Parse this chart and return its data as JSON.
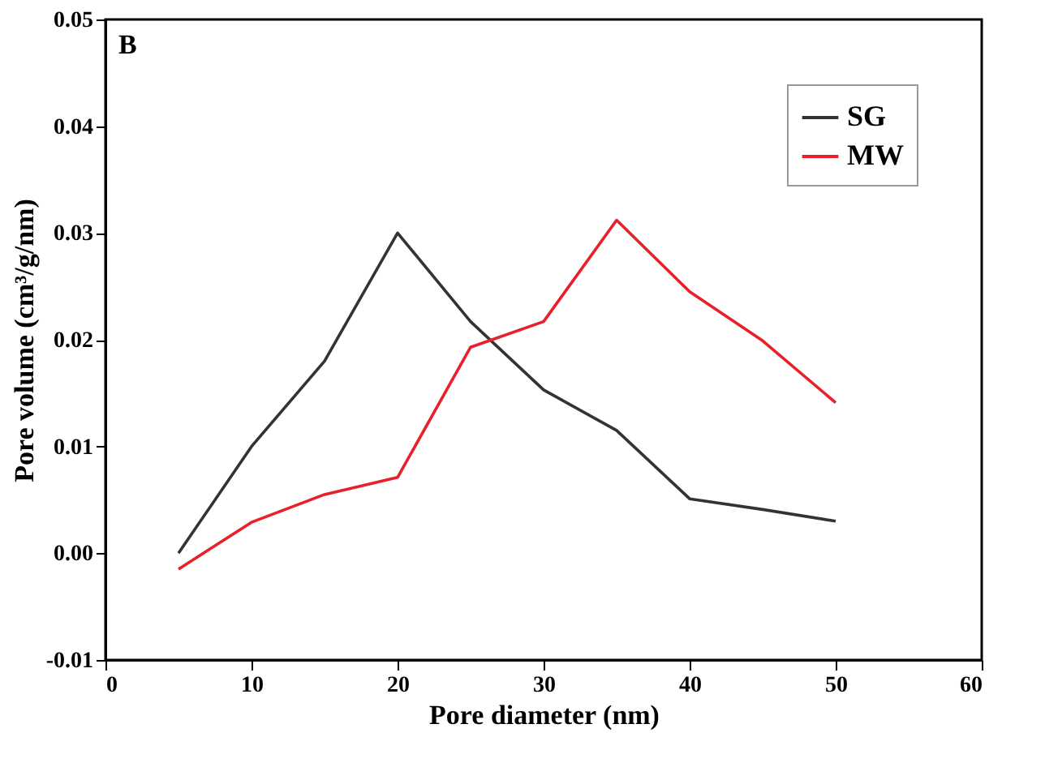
{
  "chart_data": {
    "type": "line",
    "xlabel": "Pore diameter (nm)",
    "ylabel": "Pore volume (cm³/g/nm)",
    "annotations": [
      "B"
    ],
    "x": [
      5,
      10,
      15,
      20,
      25,
      30,
      35,
      40,
      45,
      50
    ],
    "series": [
      {
        "name": "SG",
        "color": "#333333",
        "values": [
          0.0,
          0.01,
          0.018,
          0.03,
          0.0217,
          0.0153,
          0.0115,
          0.0051,
          0.0041,
          0.003
        ]
      },
      {
        "name": "MW",
        "color": "#e8202a",
        "values": [
          -0.0015,
          0.0029,
          0.0055,
          0.0071,
          0.0193,
          0.0217,
          0.0312,
          0.0245,
          0.0199,
          0.0141
        ]
      }
    ],
    "xlim": [
      0,
      60
    ],
    "xticks": [
      0,
      10,
      20,
      30,
      40,
      50,
      60
    ],
    "ylim": [
      -0.01,
      0.05
    ],
    "yticks": [
      {
        "value": -0.01,
        "label": "-0.01"
      },
      {
        "value": 0.0,
        "label": "0.00"
      },
      {
        "value": 0.01,
        "label": "0.01"
      },
      {
        "value": 0.02,
        "label": "0.02"
      },
      {
        "value": 0.03,
        "label": "0.03"
      },
      {
        "value": 0.04,
        "label": "0.04"
      },
      {
        "value": 0.05,
        "label": "0.05"
      }
    ],
    "grid": false,
    "legend": "top right",
    "marker": "none",
    "line_style": "solid"
  }
}
